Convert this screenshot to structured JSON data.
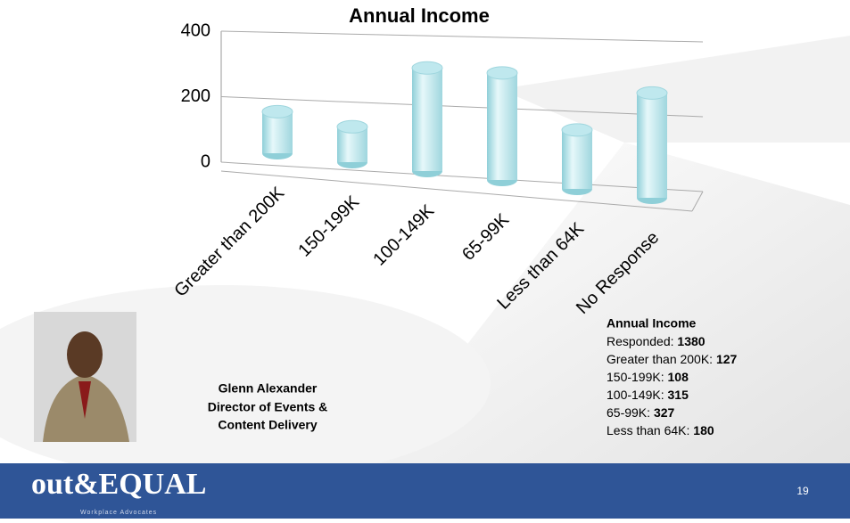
{
  "chart_data": {
    "type": "cylinder",
    "title": "Annual Income",
    "categories": [
      "Greater than 200K",
      "150-199K",
      "100-149K",
      "65-99K",
      "Less than 64K",
      "No Response"
    ],
    "values": [
      127,
      108,
      315,
      327,
      180,
      320
    ],
    "color": "#bfe8ee",
    "ylim": [
      0,
      400
    ],
    "yticks": [
      0,
      200,
      400
    ],
    "grid": true
  },
  "summary": {
    "title": "Annual Income",
    "rows": [
      {
        "label": "Responded:",
        "value": 1380
      },
      {
        "label": "Greater than 200K:",
        "value": 127
      },
      {
        "label": "150-199K:",
        "value": 108
      },
      {
        "label": "100-149K:",
        "value": 315
      },
      {
        "label": "65-99K:",
        "value": 327
      },
      {
        "label": "Less than 64K:",
        "value": 180
      }
    ]
  },
  "presenter": {
    "lines": [
      "Glenn Alexander",
      "Director of Events &",
      "Content Delivery"
    ]
  },
  "footer": {
    "logo": "out&EQUAL",
    "tagline": "Workplace Advocates",
    "page": "19"
  }
}
